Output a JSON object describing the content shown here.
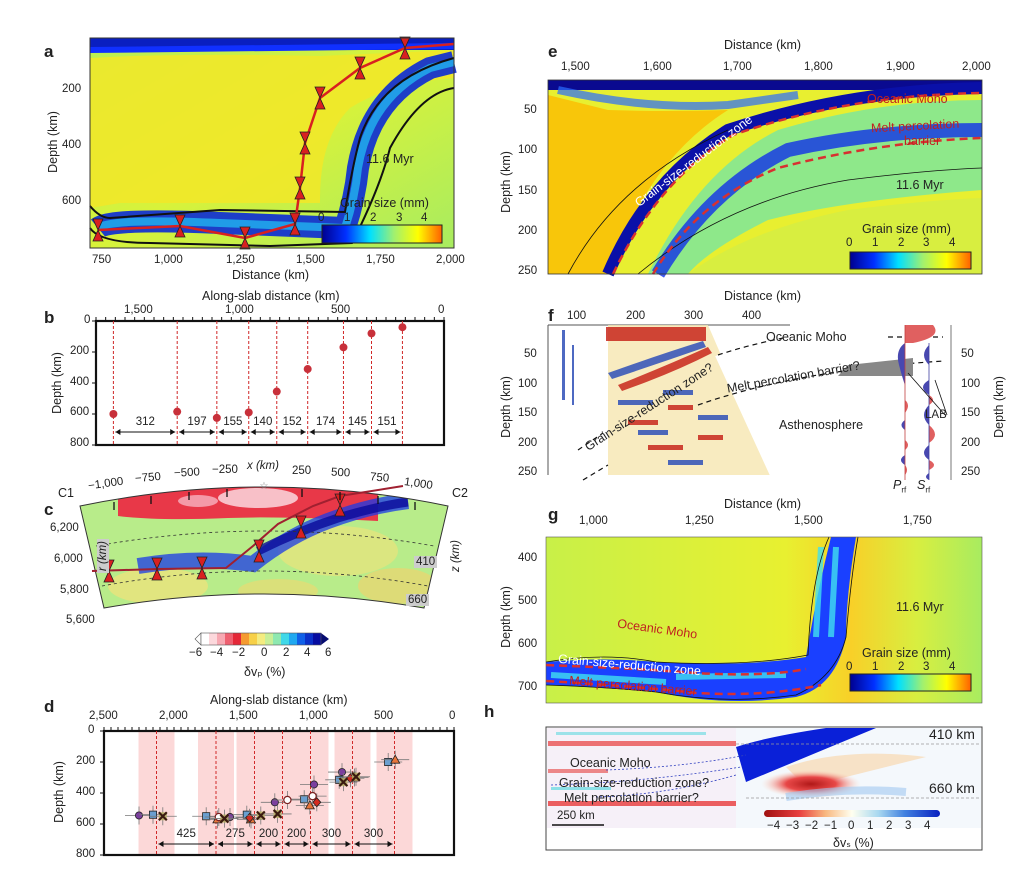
{
  "figure": {
    "panels": {
      "a": {
        "label": "a",
        "ylabel": "Depth (km)",
        "xlabel": "Distance (km)",
        "xticks": [
          "750",
          "1,000",
          "1,250",
          "1,500",
          "1,750",
          "2,000"
        ],
        "yticks": [
          "200",
          "400",
          "600"
        ],
        "time_label": "11.6 Myr",
        "colorbar": {
          "title": "Grain size (mm)",
          "ticks": [
            "0",
            "1",
            "2",
            "3",
            "4"
          ]
        }
      },
      "b": {
        "label": "b",
        "xlabel": "Along-slab distance (km)",
        "ylabel": "Depth (km)",
        "xticks": [
          "1,500",
          "1,000",
          "500",
          "0"
        ],
        "yticks": [
          "0",
          "200",
          "400",
          "600",
          "800"
        ]
      },
      "c": {
        "label": "c",
        "xlabel": "x (km)",
        "xticks": [
          "−1,000",
          "−750",
          "−500",
          "−250",
          "250",
          "500",
          "750",
          "1,000"
        ],
        "left_end": "C1",
        "right_end": "C2",
        "rlabel": "r (km)",
        "zlabel": "z (km)",
        "rticks": [
          "6,200",
          "6,000",
          "5,800",
          "5,600"
        ],
        "discontinuities": [
          "410",
          "660"
        ],
        "colorbar": {
          "title": "δvₚ (%)",
          "ticks": [
            "−6",
            "−4",
            "−2",
            "0",
            "2",
            "4",
            "6"
          ]
        }
      },
      "d": {
        "label": "d",
        "xlabel": "Along-slab distance (km)",
        "ylabel": "Depth (km)",
        "xticks": [
          "2,500",
          "2,000",
          "1,500",
          "1,000",
          "500",
          "0"
        ],
        "yticks": [
          "0",
          "200",
          "400",
          "600",
          "800"
        ]
      },
      "e": {
        "label": "e",
        "xlabel": "Distance (km)",
        "ylabel": "Depth (km)",
        "xticks": [
          "1,500",
          "1,600",
          "1,700",
          "1,800",
          "1,900",
          "2,000"
        ],
        "yticks": [
          "50",
          "100",
          "150",
          "200",
          "250"
        ],
        "annotations": [
          "Oceanic Moho",
          "Melt percolation",
          "barrier",
          "Grain-size-reduction zone"
        ],
        "time_label": "11.6 Myr",
        "colorbar": {
          "title": "Grain size (mm)",
          "ticks": [
            "0",
            "1",
            "2",
            "3",
            "4"
          ]
        }
      },
      "f": {
        "label": "f",
        "xlabel": "Distance (km)",
        "ylabel": "Depth (km)",
        "ylabel_right": "Depth (km)",
        "xticks": [
          "100",
          "200",
          "300",
          "400"
        ],
        "yticks": [
          "50",
          "100",
          "150",
          "200",
          "250"
        ],
        "annotations": [
          "Oceanic Moho",
          "Melt percolation barrier?",
          "Grain-size-reduction zone?",
          "Asthenosphere",
          "LAB"
        ],
        "trace_labels": [
          "P",
          "rf",
          "S",
          "rf"
        ]
      },
      "g": {
        "label": "g",
        "xlabel": "Distance (km)",
        "ylabel": "Depth (km)",
        "xticks": [
          "1,000",
          "1,250",
          "1,500",
          "1,750"
        ],
        "yticks": [
          "400",
          "500",
          "600",
          "700"
        ],
        "annotations": [
          "Oceanic Moho",
          "Grain-size-reduction zone",
          "Melt percolation barrier"
        ],
        "time_label": "11.6 Myr",
        "colorbar": {
          "title": "Grain size (mm)",
          "ticks": [
            "0",
            "1",
            "2",
            "3",
            "4"
          ]
        }
      },
      "h": {
        "label": "h",
        "annotations": [
          "Oceanic Moho",
          "Grain-size-reduction zone?",
          "Melt percolation barrier?"
        ],
        "discontinuities": [
          "410 km",
          "660 km"
        ],
        "scalebar": "250 km",
        "colorbar": {
          "title": "δvₛ (%)",
          "ticks": [
            "−4",
            "−3",
            "−2",
            "−1",
            "0",
            "1",
            "2",
            "3",
            "4"
          ]
        }
      }
    }
  },
  "chart_data": [
    {
      "type": "scatter",
      "panel": "b",
      "title": "",
      "xlabel": "Along-slab distance (km)",
      "ylabel": "Depth (km)",
      "xlim": [
        1800,
        0
      ],
      "ylim": [
        800,
        0
      ],
      "points": [
        {
          "x": 1710,
          "y": 600
        },
        {
          "x": 1380,
          "y": 585
        },
        {
          "x": 1175,
          "y": 625
        },
        {
          "x": 1010,
          "y": 590
        },
        {
          "x": 865,
          "y": 455
        },
        {
          "x": 705,
          "y": 310
        },
        {
          "x": 520,
          "y": 170
        },
        {
          "x": 375,
          "y": 80
        },
        {
          "x": 215,
          "y": 40
        }
      ],
      "segment_spacings": [
        "312",
        "197",
        "155",
        "140",
        "152",
        "174",
        "145",
        "151"
      ]
    },
    {
      "type": "scatter",
      "panel": "d",
      "title": "",
      "xlabel": "Along-slab distance (km)",
      "ylabel": "Depth (km)",
      "xlim": [
        2500,
        0
      ],
      "ylim": [
        800,
        0
      ],
      "reference_lines": [
        2125,
        1700,
        1425,
        1225,
        1025,
        725,
        425
      ],
      "segment_spacings": [
        "425",
        "275",
        "200",
        "200",
        "300",
        "300"
      ],
      "series": [
        {
          "name": "purple-circle",
          "color": "#7b3f9e",
          "points": [
            [
              2250,
              545
            ],
            [
              1600,
              555
            ],
            [
              1280,
              460
            ],
            [
              1000,
              345
            ],
            [
              800,
              265
            ]
          ]
        },
        {
          "name": "blue-square",
          "color": "#6a9fd0",
          "points": [
            [
              2150,
              540
            ],
            [
              1770,
              550
            ],
            [
              1480,
              540
            ],
            [
              1070,
              440
            ],
            [
              820,
              315
            ],
            [
              470,
              200
            ]
          ]
        },
        {
          "name": "orange-triangle",
          "color": "#e8743b",
          "points": [
            [
              1690,
              570
            ],
            [
              1450,
              570
            ],
            [
              1030,
              480
            ],
            [
              710,
              300
            ],
            [
              420,
              185
            ]
          ]
        },
        {
          "name": "red-diamond",
          "color": "#d42a20",
          "points": [
            [
              1460,
              560
            ],
            [
              980,
              460
            ],
            [
              740,
              305
            ]
          ]
        },
        {
          "name": "open-circle",
          "color": "#ffffff",
          "points": [
            [
              1680,
              555
            ],
            [
              1190,
              445
            ],
            [
              1010,
              420
            ]
          ]
        },
        {
          "name": "x-cross",
          "color": "#3a1a10",
          "points": [
            [
              2080,
              550
            ],
            [
              1640,
              565
            ],
            [
              1380,
              545
            ],
            [
              1260,
              535
            ],
            [
              790,
              330
            ],
            [
              700,
              295
            ]
          ]
        }
      ]
    }
  ]
}
